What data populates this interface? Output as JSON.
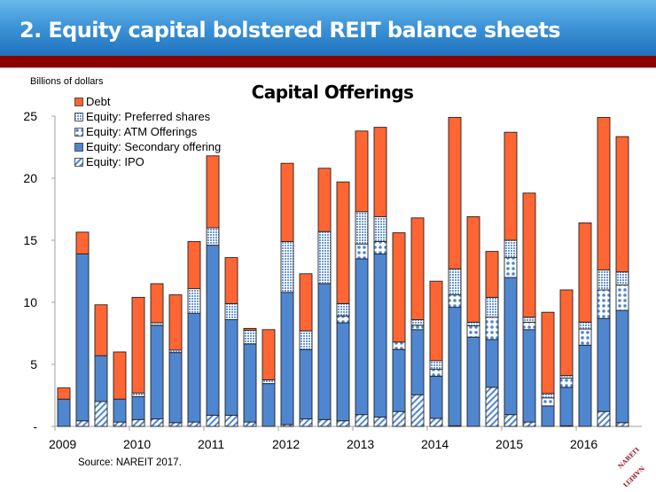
{
  "header": {
    "title": "2.  Equity capital bolstered REIT balance sheets"
  },
  "colors": {
    "header_blue": "#2a80c8",
    "red_band": "#8a0000",
    "debt": "#ff6633",
    "secondary": "#4f86d0",
    "pattern_blue": "#4f86d0"
  },
  "source": "Source: NAREIT 2017.",
  "logo_text": "NAREIT",
  "chart_data": {
    "type": "bar",
    "stacked": true,
    "title": "Capital Offerings",
    "ylabel": "Billions of dollars",
    "xlabel": "",
    "ylim": [
      0,
      25
    ],
    "yticks": [
      {
        "value": 0,
        "label": "-"
      },
      {
        "value": 5,
        "label": "5"
      },
      {
        "value": 10,
        "label": "10"
      },
      {
        "value": 15,
        "label": "15"
      },
      {
        "value": 20,
        "label": "20"
      },
      {
        "value": 25,
        "label": "25"
      }
    ],
    "xtick_labels": [
      "2009",
      "2010",
      "2011",
      "2012",
      "2013",
      "2014",
      "2015",
      "2016"
    ],
    "categories": [
      "2009Q1",
      "2009Q2",
      "2009Q3",
      "2009Q4",
      "2010Q1",
      "2010Q2",
      "2010Q3",
      "2010Q4",
      "2011Q1",
      "2011Q2",
      "2011Q3",
      "2011Q4",
      "2012Q1",
      "2012Q2",
      "2012Q3",
      "2012Q4",
      "2013Q1",
      "2013Q2",
      "2013Q3",
      "2013Q4",
      "2014Q1",
      "2014Q2",
      "2014Q3",
      "2014Q4",
      "2015Q1",
      "2015Q2",
      "2015Q3",
      "2015Q4",
      "2016Q1",
      "2016Q2",
      "2016Q3"
    ],
    "legend_position": "top-left",
    "grid": false,
    "series": [
      {
        "name": "Equity: IPO",
        "key": "ipo",
        "values": [
          0,
          0.45,
          2.0,
          0.35,
          0.55,
          0.6,
          0.3,
          0.35,
          0.9,
          0.9,
          0.35,
          0,
          0.15,
          0.6,
          0.55,
          0.45,
          0.95,
          0.75,
          1.2,
          2.55,
          0.65,
          0.05,
          0,
          3.15,
          0.95,
          0.35,
          0,
          0.05,
          0,
          1.2,
          0.3
        ]
      },
      {
        "name": "Equity: Secondary offering",
        "key": "secondary",
        "values": [
          2.2,
          13.45,
          3.7,
          1.85,
          1.85,
          7.55,
          5.65,
          8.75,
          13.7,
          7.7,
          6.3,
          3.45,
          10.65,
          5.6,
          10.95,
          7.9,
          12.55,
          13.15,
          5.0,
          5.25,
          3.4,
          9.55,
          7.2,
          3.85,
          11.05,
          7.45,
          1.65,
          3.1,
          6.55,
          7.5,
          9.05
        ]
      },
      {
        "name": "Equity: ATM Offerings",
        "key": "atm",
        "values": [
          0,
          0,
          0,
          0,
          0,
          0,
          0,
          0,
          0,
          0,
          0,
          0,
          0,
          0,
          0,
          0.55,
          1.2,
          1.0,
          0.6,
          0.35,
          0.55,
          1.0,
          0.9,
          1.8,
          1.6,
          0.6,
          0.65,
          0.75,
          1.3,
          2.3,
          2.05
        ]
      },
      {
        "name": "Equity: Preferred shares",
        "key": "preferred",
        "values": [
          0,
          0,
          0,
          0,
          0.3,
          0.2,
          0.2,
          2.0,
          1.4,
          1.3,
          1.1,
          0.3,
          4.1,
          1.5,
          4.2,
          1.0,
          2.6,
          2.0,
          0,
          0.45,
          0.7,
          2.1,
          0.3,
          1.6,
          1.4,
          0.4,
          0.35,
          0.2,
          0.55,
          1.6,
          1.05
        ]
      },
      {
        "name": "Debt",
        "key": "debt",
        "values": [
          0.9,
          1.75,
          4.1,
          3.8,
          7.7,
          3.15,
          4.45,
          3.8,
          5.8,
          3.7,
          0.15,
          4.05,
          6.3,
          4.6,
          5.1,
          9.8,
          6.5,
          7.2,
          8.8,
          8.2,
          6.4,
          12.2,
          8.5,
          3.7,
          8.7,
          10.0,
          6.55,
          6.9,
          8.0,
          12.3,
          10.9
        ]
      }
    ],
    "legend": [
      "Debt",
      "Equity: Preferred shares",
      "Equity: ATM Offerings",
      "Equity: Secondary offering",
      "Equity: IPO"
    ]
  }
}
